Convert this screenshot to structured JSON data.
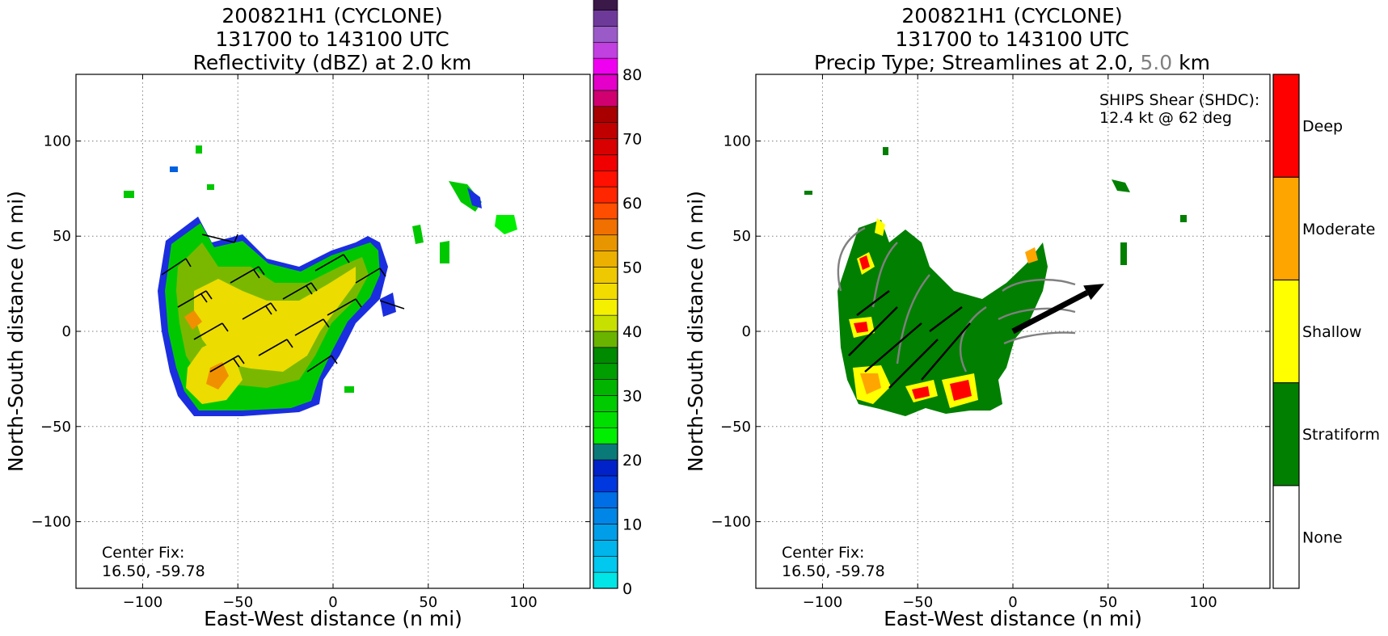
{
  "left_panel": {
    "title_line1": "200821H1 (CYCLONE)",
    "title_line2": "131700 to 143100 UTC",
    "title_line3": "Reflectivity (dBZ) at 2.0 km",
    "xlabel": "East-West distance (n mi)",
    "ylabel": "North-South distance (n mi)",
    "center_fix_label": "Center Fix:",
    "center_fix_value": "16.50, -59.78"
  },
  "right_panel": {
    "title_line1": "200821H1 (CYCLONE)",
    "title_line2": "131700 to 143100 UTC",
    "title_line3_a": "Precip Type; Streamlines at 2.0,",
    "title_line3_b": "5.0",
    "title_line3_c": "km",
    "xlabel": "East-West distance (n mi)",
    "ylabel": "North-South distance (n mi)",
    "center_fix_label": "Center Fix:",
    "center_fix_value": "16.50, -59.78",
    "shear_label": "SHIPS Shear (SHDC):",
    "shear_value": "12.4 kt @ 62 deg"
  },
  "chart_data": [
    {
      "type": "heatmap",
      "title": "200821H1 (CYCLONE) 131700 to 143100 UTC Reflectivity (dBZ) at 2.0 km",
      "xlabel": "East-West distance (n mi)",
      "ylabel": "North-South distance (n mi)",
      "xlim": [
        -135,
        135
      ],
      "ylim": [
        -135,
        135
      ],
      "xticks": [
        -100,
        -50,
        0,
        50,
        100
      ],
      "yticks": [
        -100,
        -50,
        0,
        50,
        100
      ],
      "xtick_labels": [
        "−100",
        "−50",
        "0",
        "50",
        "100"
      ],
      "ytick_labels": [
        "−100",
        "−50",
        "0",
        "50",
        "100"
      ],
      "grid": true,
      "colorbar": {
        "min": 0,
        "max": 80,
        "step": 2.5,
        "tick_values": [
          0,
          10,
          20,
          30,
          40,
          50,
          60,
          70,
          80
        ],
        "tick_labels": [
          "0",
          "10",
          "20",
          "30",
          "40",
          "50",
          "60",
          "70",
          "80"
        ],
        "colors": [
          "#00e5e5",
          "#00c8ef",
          "#00b4ec",
          "#009ee8",
          "#0086e6",
          "#006ee4",
          "#0038e0",
          "#0022c8",
          "#0a7a78",
          "#00ee00",
          "#00de00",
          "#00ca00",
          "#00b400",
          "#009e00",
          "#008a00",
          "#6ab400",
          "#c8e000",
          "#f5f000",
          "#f2dc00",
          "#eec800",
          "#ecb000",
          "#e89600",
          "#f07000",
          "#ff4e00",
          "#ff2600",
          "#ff1000",
          "#f00000",
          "#d80000",
          "#c00000",
          "#a80000",
          "#d00070",
          "#e400c8",
          "#f000f0",
          "#c040e0",
          "#9a5ac8",
          "#6e3a9a",
          "#3a1848",
          "#000000"
        ]
      },
      "echo_region_centroid": {
        "x": -38,
        "y": 5
      },
      "annotation": "Center Fix: 16.50, -59.78"
    },
    {
      "type": "heatmap",
      "title": "200821H1 (CYCLONE) 131700 to 143100 UTC Precip Type; Streamlines at 2.0, 5.0 km",
      "xlabel": "East-West distance (n mi)",
      "ylabel": "North-South distance (n mi)",
      "xlim": [
        -135,
        135
      ],
      "ylim": [
        -135,
        135
      ],
      "xticks": [
        -100,
        -50,
        0,
        50,
        100
      ],
      "yticks": [
        -100,
        -50,
        0,
        50,
        100
      ],
      "xtick_labels": [
        "−100",
        "−50",
        "0",
        "50",
        "100"
      ],
      "ytick_labels": [
        "−100",
        "−50",
        "0",
        "50",
        "100"
      ],
      "grid": true,
      "categories": [
        "None",
        "Stratiform",
        "Shallow",
        "Moderate",
        "Deep"
      ],
      "category_colors": [
        "#ffffff",
        "#007f00",
        "#ffff00",
        "#ffa500",
        "#ff0000"
      ],
      "streamline_levels_km": [
        2.0,
        5.0
      ],
      "streamline_colors": {
        "2.0": "#000000",
        "5.0": "#808080"
      },
      "shear_vector": {
        "speed_kt": 12.4,
        "direction_deg": 62,
        "from": [
          0,
          0
        ],
        "to": [
          48,
          25
        ]
      },
      "annotation": "Center Fix: 16.50, -59.78"
    }
  ],
  "colors": {
    "reflectivity_main": "#e8e000",
    "stratiform": "#007f00",
    "grid": "#808080"
  }
}
